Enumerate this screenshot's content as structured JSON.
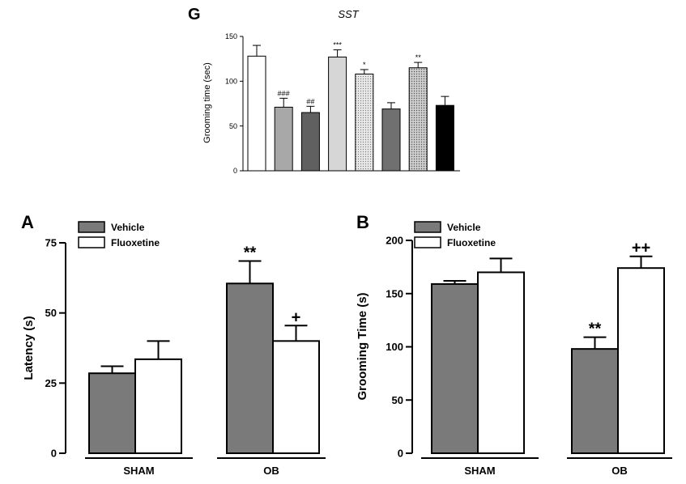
{
  "chart_data": [
    {
      "id": "G",
      "panel_letter": "G",
      "type": "bar",
      "title": "SST",
      "ylabel": "Grooming time (sec)",
      "xlabel": "",
      "ylim": [
        0,
        150
      ],
      "yticks": [
        "0",
        "50",
        "100",
        "150"
      ],
      "values": [
        128,
        71,
        65,
        127,
        108,
        69,
        115,
        73
      ],
      "errors": [
        12,
        10,
        7,
        8,
        5,
        7,
        6,
        10
      ],
      "annotations": [
        "",
        "###",
        "##",
        "***",
        "*",
        "",
        "**",
        ""
      ],
      "fills": [
        "#ffffff",
        "#a8a8a8",
        "#606060",
        "#d6d6d6",
        "dots-light",
        "#707070",
        "dots-dark",
        "#000000"
      ]
    },
    {
      "id": "A",
      "panel_letter": "A",
      "type": "bar",
      "title": "",
      "ylabel": "Latency (s)",
      "xlabel": "",
      "ylim": [
        0,
        75
      ],
      "yticks": [
        "0",
        "25",
        "50",
        "75"
      ],
      "categories": [
        "SHAM",
        "OB"
      ],
      "legend": [
        "Vehicle",
        "Fluoxetine"
      ],
      "series_colors": [
        "#7a7a7a",
        "#ffffff"
      ],
      "series": [
        {
          "name": "Vehicle",
          "values": [
            28.5,
            60.5
          ],
          "errors": [
            2.5,
            8
          ],
          "annotations": [
            "",
            "**"
          ]
        },
        {
          "name": "Fluoxetine",
          "values": [
            33.5,
            40
          ],
          "errors": [
            6.5,
            5.5
          ],
          "annotations": [
            "",
            "+"
          ]
        }
      ]
    },
    {
      "id": "B",
      "panel_letter": "B",
      "type": "bar",
      "title": "",
      "ylabel": "Grooming Time (s)",
      "xlabel": "",
      "ylim": [
        0,
        200
      ],
      "yticks": [
        "0",
        "50",
        "100",
        "150",
        "200"
      ],
      "categories": [
        "SHAM",
        "OB"
      ],
      "legend": [
        "Vehicle",
        "Fluoxetine"
      ],
      "series_colors": [
        "#7a7a7a",
        "#ffffff"
      ],
      "series": [
        {
          "name": "Vehicle",
          "values": [
            159,
            98
          ],
          "errors": [
            3,
            11
          ],
          "annotations": [
            "",
            "**"
          ]
        },
        {
          "name": "Fluoxetine",
          "values": [
            170,
            174
          ],
          "errors": [
            13,
            11
          ],
          "annotations": [
            "",
            "++"
          ]
        }
      ]
    }
  ]
}
